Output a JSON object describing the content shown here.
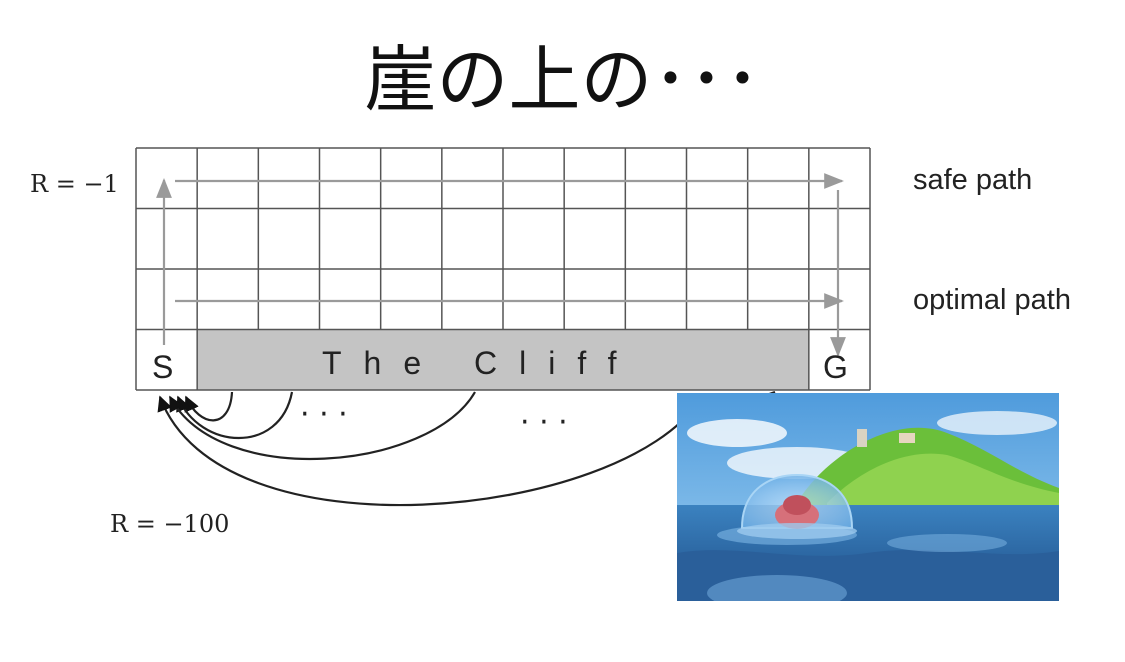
{
  "slide": {
    "title": "崖の上の･･･"
  },
  "diagram": {
    "reward_step_label": "R = −1",
    "reward_cliff_label": "R = −100",
    "safe_path_label": "safe path",
    "optimal_path_label": "optimal path",
    "start_label": "S",
    "goal_label": "G",
    "cliff_label": "The Cliff",
    "ellipsis": "· · ·",
    "grid": {
      "columns": 12,
      "rows": 4
    }
  },
  "photo": {
    "icon": "ponyo-sea-scene-illustration"
  },
  "colors": {
    "grid_line": "#555555",
    "cliff_fill": "#c4c4c4",
    "arrow_gray": "#9a9a9a",
    "curve": "#222222",
    "sky": "#5fa8e0",
    "sea": "#2e6fa8"
  }
}
